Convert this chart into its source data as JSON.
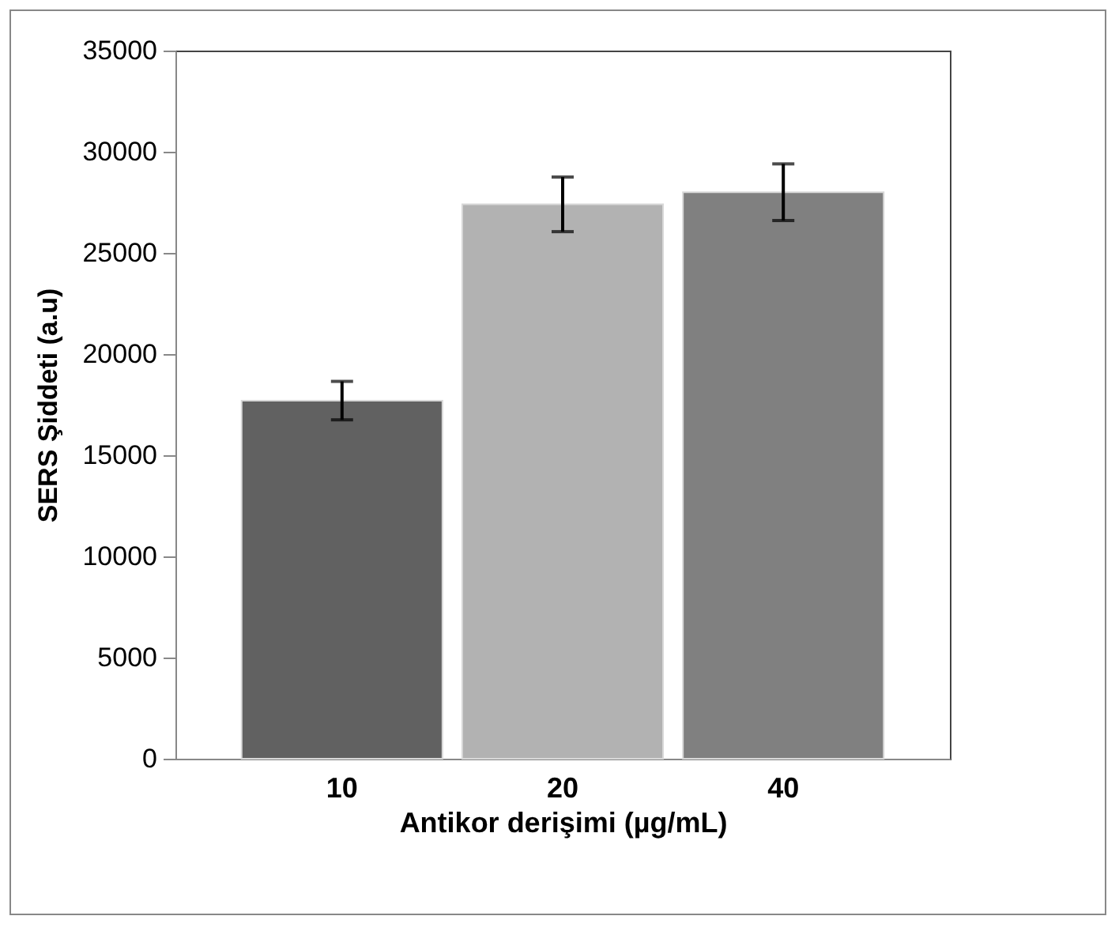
{
  "chart_data": {
    "type": "bar",
    "xlabel": "Antikor derişimi (µg/mL)",
    "ylabel": "SERS Şiddeti (a.u)",
    "categories": [
      "10",
      "20",
      "40"
    ],
    "values": [
      17700,
      27400,
      28000
    ],
    "colors": [
      "#616161",
      "#b2b2b2",
      "#808080"
    ],
    "errors": [
      950,
      1350,
      1400
    ],
    "ylim": [
      0,
      35000
    ],
    "yticks": [
      0,
      5000,
      10000,
      15000,
      20000,
      25000,
      30000,
      35000
    ],
    "grid": false
  }
}
